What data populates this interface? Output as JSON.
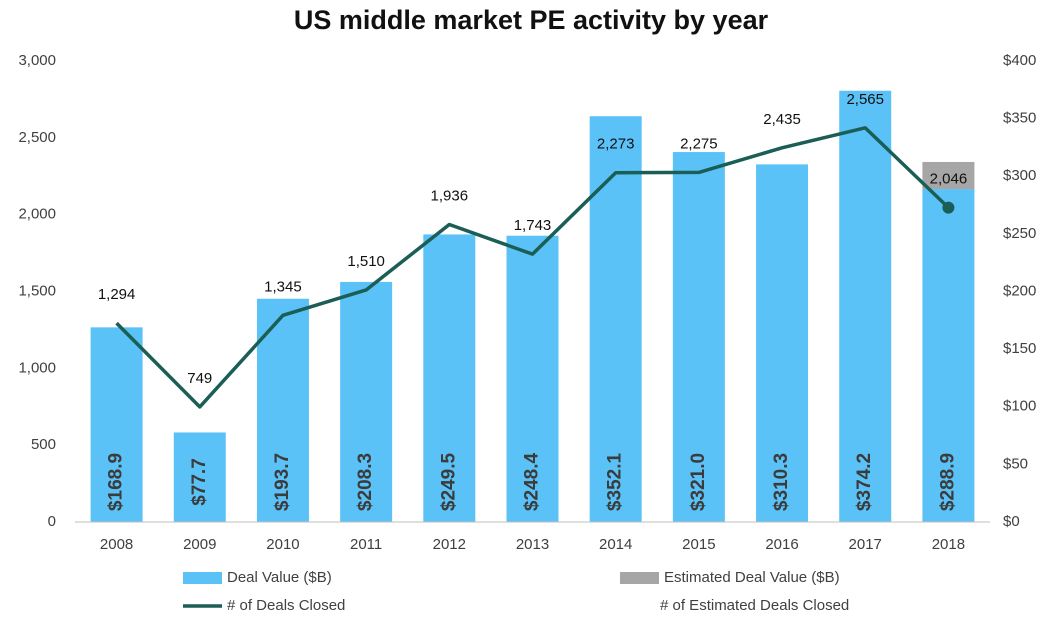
{
  "chart_data": {
    "type": "bar_line",
    "title": "US middle market PE activity by year",
    "categories": [
      "2008",
      "2009",
      "2010",
      "2011",
      "2012",
      "2013",
      "2014",
      "2015",
      "2016",
      "2017",
      "2018"
    ],
    "series": [
      {
        "name": "Deal Value ($B)",
        "type": "bar",
        "axis": "y2",
        "color": "#5bc2f7",
        "values": [
          168.9,
          77.7,
          193.7,
          208.3,
          249.5,
          248.4,
          352.1,
          321.0,
          310.3,
          374.2,
          288.9
        ],
        "value_labels": [
          "$168.9",
          "$77.7",
          "$193.7",
          "$208.3",
          "$249.5",
          "$248.4",
          "$352.1",
          "$321.0",
          "$310.3",
          "$374.2",
          "$288.9"
        ]
      },
      {
        "name": "Estimated Deal Value ($B)",
        "type": "bar",
        "axis": "y2",
        "stacked": true,
        "color": "#a6a6a6",
        "values": [
          null,
          null,
          null,
          null,
          null,
          null,
          null,
          null,
          null,
          null,
          23.5
        ]
      },
      {
        "name": "# of Deals Closed",
        "type": "line",
        "axis": "y",
        "color": "#1b5e56",
        "values": [
          1294,
          749,
          1345,
          1510,
          1936,
          1743,
          2273,
          2275,
          2435,
          2565,
          2046
        ],
        "value_labels": [
          "1,294",
          "749",
          "1,345",
          "1,510",
          "1,936",
          "1,743",
          "2,273",
          "2,275",
          "2,435",
          "2,565",
          null
        ]
      },
      {
        "name": "# of Estimated Deals Closed",
        "type": "marker",
        "axis": "y",
        "color": "#1b5e56",
        "values": [
          null,
          null,
          null,
          null,
          null,
          null,
          null,
          null,
          null,
          null,
          2046
        ],
        "value_labels": [
          null,
          null,
          null,
          null,
          null,
          null,
          null,
          null,
          null,
          null,
          "2,046"
        ]
      }
    ],
    "ylim": [
      0,
      3000
    ],
    "yticks": [
      0,
      500,
      {
        "value": 1000,
        "label": "1,000"
      },
      {
        "value": 1500,
        "label": "1,500"
      },
      {
        "value": 2000,
        "label": "2,000"
      },
      {
        "value": 2500,
        "label": "2,500"
      },
      {
        "value": 3000,
        "label": "3,000"
      }
    ],
    "y2lim": [
      0,
      400
    ],
    "y2ticks": [
      {
        "value": 0,
        "label": "$0"
      },
      {
        "value": 50,
        "label": "$50"
      },
      {
        "value": 100,
        "label": "$100"
      },
      {
        "value": 150,
        "label": "$150"
      },
      {
        "value": 200,
        "label": "$200"
      },
      {
        "value": 250,
        "label": "$250"
      },
      {
        "value": 300,
        "label": "$300"
      },
      {
        "value": 350,
        "label": "$350"
      },
      {
        "value": 400,
        "label": "$400"
      }
    ],
    "grid": false,
    "legend": "bottom"
  }
}
